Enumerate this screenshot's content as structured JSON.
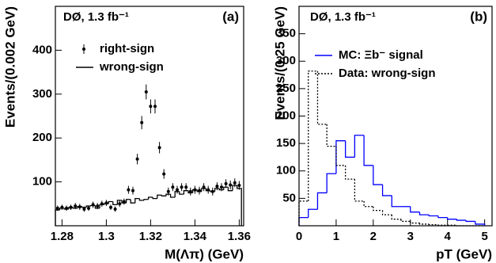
{
  "chart_data": [
    {
      "type": "histogram",
      "label": "(a)",
      "annotation": "DØ, 1.3 fb⁻¹",
      "x_label": "M(Λπ) (GeV)",
      "y_label": "Events/(0.002 GeV)",
      "xlim": [
        1.277,
        1.362
      ],
      "ylim": [
        0,
        500
      ],
      "xticks": [
        1.28,
        1.3,
        1.32,
        1.34,
        1.36
      ],
      "yticks": [
        100,
        200,
        300,
        400
      ],
      "series": [
        {
          "name": "right-sign",
          "type": "errorbar",
          "color": "#000000",
          "x": [
            1.278,
            1.28,
            1.282,
            1.284,
            1.286,
            1.288,
            1.29,
            1.292,
            1.294,
            1.296,
            1.298,
            1.3,
            1.302,
            1.304,
            1.306,
            1.308,
            1.31,
            1.312,
            1.314,
            1.316,
            1.318,
            1.32,
            1.322,
            1.324,
            1.326,
            1.328,
            1.33,
            1.332,
            1.334,
            1.336,
            1.338,
            1.34,
            1.342,
            1.344,
            1.346,
            1.348,
            1.35,
            1.352,
            1.354,
            1.356,
            1.358,
            1.36
          ],
          "values": [
            40,
            42,
            40,
            42,
            45,
            43,
            38,
            40,
            48,
            45,
            50,
            52,
            42,
            38,
            50,
            55,
            82,
            80,
            152,
            235,
            305,
            272,
            272,
            178,
            118,
            78,
            88,
            82,
            88,
            88,
            78,
            82,
            80,
            88,
            82,
            78,
            90,
            88,
            96,
            93,
            98,
            92
          ],
          "errors": [
            6,
            6,
            6,
            6,
            7,
            7,
            6,
            6,
            7,
            7,
            7,
            7,
            6,
            6,
            7,
            7,
            9,
            9,
            12,
            15,
            17,
            16,
            16,
            13,
            11,
            9,
            9,
            9,
            9,
            9,
            9,
            9,
            9,
            9,
            9,
            9,
            9,
            9,
            10,
            10,
            10,
            10
          ]
        },
        {
          "name": "wrong-sign",
          "type": "step",
          "color": "#000000",
          "dash": "none",
          "bins": [
            1.277,
            1.279,
            1.281,
            1.283,
            1.285,
            1.287,
            1.289,
            1.291,
            1.293,
            1.295,
            1.297,
            1.299,
            1.301,
            1.303,
            1.305,
            1.307,
            1.309,
            1.311,
            1.313,
            1.315,
            1.317,
            1.319,
            1.321,
            1.323,
            1.325,
            1.327,
            1.329,
            1.331,
            1.333,
            1.335,
            1.337,
            1.339,
            1.341,
            1.343,
            1.345,
            1.347,
            1.349,
            1.351,
            1.353,
            1.355,
            1.357,
            1.359,
            1.361
          ],
          "values": [
            36,
            40,
            38,
            42,
            40,
            44,
            42,
            45,
            46,
            40,
            48,
            50,
            55,
            48,
            58,
            52,
            60,
            52,
            62,
            58,
            60,
            65,
            62,
            70,
            68,
            72,
            65,
            78,
            72,
            80,
            75,
            82,
            78,
            85,
            80,
            78,
            85,
            82,
            88,
            80,
            92,
            85
          ]
        }
      ]
    },
    {
      "type": "histogram",
      "label": "(b)",
      "annotation": "DØ, 1.3 fb⁻¹",
      "x_label": "pT (GeV)",
      "y_label": "Events/(0.25 GeV)",
      "xlim": [
        0,
        5.2
      ],
      "ylim": [
        0,
        400
      ],
      "xticks": [
        0,
        1,
        2,
        3,
        4,
        5
      ],
      "yticks": [
        50,
        100,
        150,
        200,
        250,
        300,
        350
      ],
      "series": [
        {
          "name": "MC: Ξb⁻ signal",
          "type": "step",
          "color": "#0000ff",
          "dash": "none",
          "bins": [
            0,
            0.25,
            0.5,
            0.75,
            1,
            1.25,
            1.5,
            1.75,
            2,
            2.25,
            2.5,
            2.75,
            3,
            3.25,
            3.5,
            3.75,
            4,
            4.25,
            4.5,
            4.75,
            5
          ],
          "values": [
            15,
            30,
            60,
            95,
            155,
            125,
            165,
            110,
            75,
            55,
            35,
            35,
            25,
            20,
            18,
            15,
            12,
            10,
            8,
            3
          ]
        },
        {
          "name": "Data: wrong-sign",
          "type": "step",
          "color": "#000000",
          "dash": "2 2",
          "bins": [
            0,
            0.25,
            0.5,
            0.75,
            1,
            1.25,
            1.5,
            1.75,
            2,
            2.25,
            2.5,
            2.75,
            3,
            3.25,
            3.5,
            3.75,
            4,
            4.25,
            4.5,
            4.75,
            5
          ],
          "values": [
            45,
            282,
            185,
            145,
            110,
            85,
            45,
            35,
            28,
            20,
            12,
            8,
            5,
            3,
            2,
            1,
            1,
            0,
            0,
            0
          ]
        }
      ]
    }
  ]
}
